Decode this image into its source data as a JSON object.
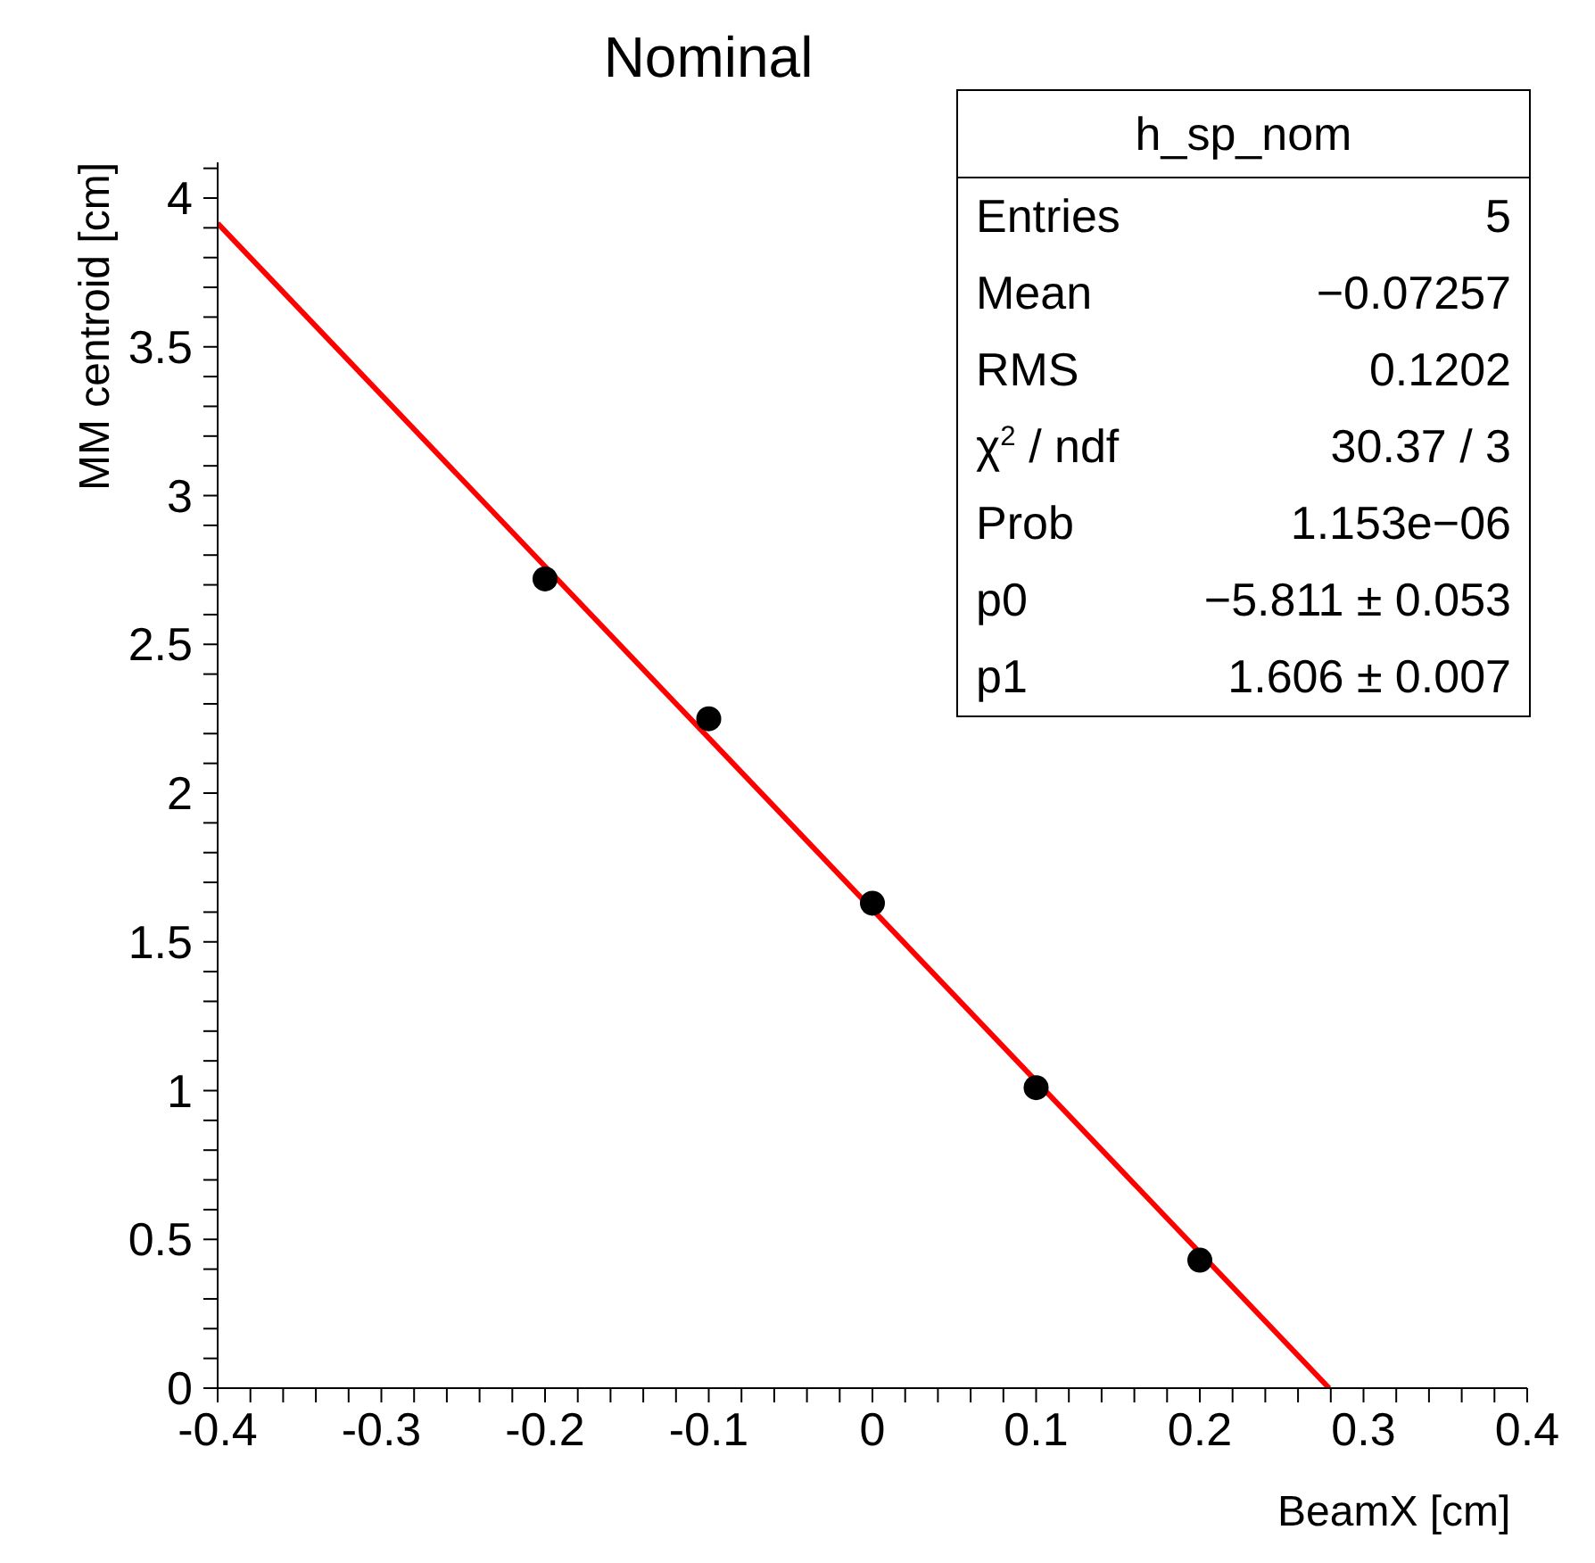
{
  "chart_data": {
    "type": "scatter",
    "title": "Nominal",
    "xlabel": "BeamX [cm]",
    "ylabel": "MM centroid [cm]",
    "xlim": [
      -0.4,
      0.4
    ],
    "ylim": [
      0,
      4.12
    ],
    "xticks": [
      -0.4,
      {
        "value": -0.38,
        "label": null
      },
      {
        "value": -0.36,
        "label": null
      },
      {
        "value": -0.34,
        "label": null
      },
      {
        "value": -0.32,
        "label": null
      },
      -0.3,
      {
        "value": -0.28,
        "label": null
      },
      {
        "value": -0.26,
        "label": null
      },
      {
        "value": -0.24,
        "label": null
      },
      {
        "value": -0.22,
        "label": null
      },
      -0.2,
      {
        "value": -0.18,
        "label": null
      },
      {
        "value": -0.16,
        "label": null
      },
      {
        "value": -0.14,
        "label": null
      },
      {
        "value": -0.12,
        "label": null
      },
      -0.1,
      {
        "value": -0.08,
        "label": null
      },
      {
        "value": -0.06,
        "label": null
      },
      {
        "value": -0.04,
        "label": null
      },
      {
        "value": -0.02,
        "label": null
      },
      0,
      {
        "value": 0.02,
        "label": null
      },
      {
        "value": 0.04,
        "label": null
      },
      {
        "value": 0.06,
        "label": null
      },
      {
        "value": 0.08,
        "label": null
      },
      0.1,
      {
        "value": 0.12,
        "label": null
      },
      {
        "value": 0.14,
        "label": null
      },
      {
        "value": 0.16,
        "label": null
      },
      {
        "value": 0.18,
        "label": null
      },
      0.2,
      {
        "value": 0.22,
        "label": null
      },
      {
        "value": 0.24,
        "label": null
      },
      {
        "value": 0.26,
        "label": null
      },
      {
        "value": 0.28,
        "label": null
      },
      0.3,
      {
        "value": 0.32,
        "label": null
      },
      {
        "value": 0.34,
        "label": null
      },
      {
        "value": 0.36,
        "label": null
      },
      {
        "value": 0.38,
        "label": null
      },
      0.4
    ],
    "yticks": [
      0,
      {
        "value": 0.1,
        "label": null
      },
      {
        "value": 0.2,
        "label": null
      },
      {
        "value": 0.3,
        "label": null
      },
      {
        "value": 0.4,
        "label": null
      },
      0.5,
      {
        "value": 0.6,
        "label": null
      },
      {
        "value": 0.7,
        "label": null
      },
      {
        "value": 0.8,
        "label": null
      },
      {
        "value": 0.9,
        "label": null
      },
      1,
      {
        "value": 1.1,
        "label": null
      },
      {
        "value": 1.2,
        "label": null
      },
      {
        "value": 1.3,
        "label": null
      },
      {
        "value": 1.4,
        "label": null
      },
      1.5,
      {
        "value": 1.6,
        "label": null
      },
      {
        "value": 1.7,
        "label": null
      },
      {
        "value": 1.8,
        "label": null
      },
      {
        "value": 1.9,
        "label": null
      },
      2,
      {
        "value": 2.1,
        "label": null
      },
      {
        "value": 2.2,
        "label": null
      },
      {
        "value": 2.3,
        "label": null
      },
      {
        "value": 2.4,
        "label": null
      },
      2.5,
      {
        "value": 2.6,
        "label": null
      },
      {
        "value": 2.7,
        "label": null
      },
      {
        "value": 2.8,
        "label": null
      },
      {
        "value": 2.9,
        "label": null
      },
      3,
      {
        "value": 3.1,
        "label": null
      },
      {
        "value": 3.2,
        "label": null
      },
      {
        "value": 3.3,
        "label": null
      },
      {
        "value": 3.4,
        "label": null
      },
      3.5,
      {
        "value": 3.6,
        "label": null
      },
      {
        "value": 3.7,
        "label": null
      },
      {
        "value": 3.8,
        "label": null
      },
      {
        "value": 3.9,
        "label": null
      },
      4,
      {
        "value": 4.1,
        "label": null
      }
    ],
    "grid": false,
    "legend": false,
    "marker": "circle",
    "series": [
      {
        "color": "#000000",
        "x": [
          -0.2,
          -0.1,
          0,
          0.1,
          0.2
        ],
        "values": [
          2.72,
          2.25,
          1.63,
          1.01,
          0.43
        ]
      },
      {
        "type": "line",
        "color": "#ff0000",
        "marker": "none",
        "line_style": "solid",
        "x": [
          -0.4,
          0.279
        ],
        "values": [
          3.915,
          0
        ]
      }
    ],
    "annotations": [
      "h_sp_nom",
      "Entries",
      "5",
      "Mean",
      "−0.07257",
      "RMS",
      "0.1202",
      "χ$^{2}$ / ndf",
      "30.37 / 3",
      "Prob",
      "1.153e−06",
      "p0",
      "−5.811 ± 0.053",
      "p1",
      "1.606 ± 0.007"
    ]
  }
}
